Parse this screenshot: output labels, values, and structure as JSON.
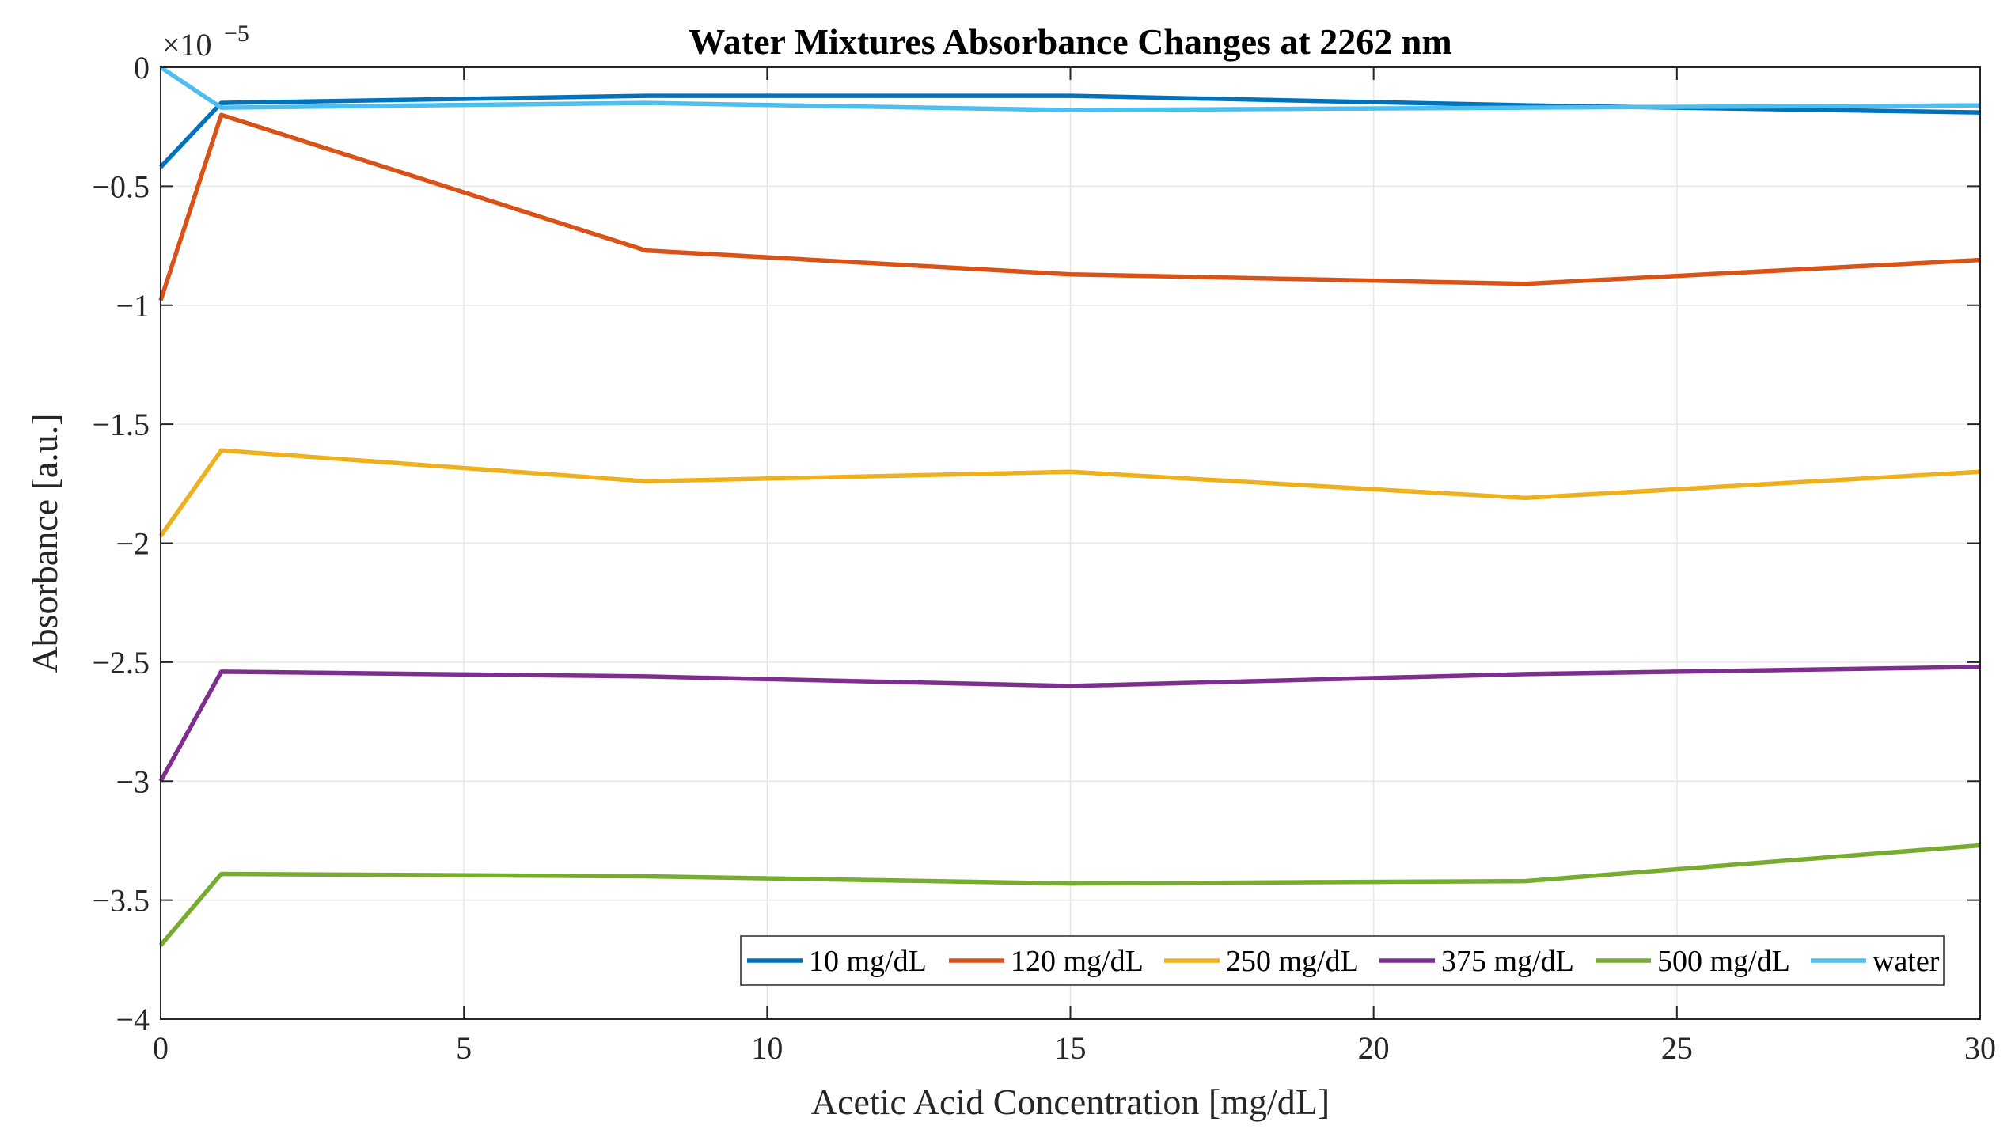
{
  "chart_data": {
    "type": "line",
    "title": "Water Mixtures Absorbance Changes at 2262 nm",
    "xlabel": "Acetic Acid Concentration [mg/dL]",
    "ylabel": "Absorbance [a.u.]",
    "y_multiplier": {
      "base": "×10",
      "exponent": "−5"
    },
    "xlim": [
      0,
      30
    ],
    "ylim": [
      -4,
      0
    ],
    "grid": true,
    "legend_location": "bottom-right",
    "legend_orientation": "horizontal",
    "x_ticks": [
      0,
      5,
      10,
      15,
      20,
      25,
      30
    ],
    "x_tick_labels": [
      "0",
      "5",
      "10",
      "15",
      "20",
      "25",
      "30"
    ],
    "y_ticks": [
      0,
      -0.5,
      -1,
      -1.5,
      -2,
      -2.5,
      -3,
      -3.5,
      -4
    ],
    "y_tick_labels": [
      "0",
      "−0.5",
      "−1",
      "−1.5",
      "−2",
      "−2.5",
      "−3",
      "−3.5",
      "−4"
    ],
    "x": [
      0,
      1,
      8,
      15,
      22.5,
      30
    ],
    "series": [
      {
        "name": "10 mg/dL",
        "color": "#0072BD",
        "values": [
          -0.42,
          -0.15,
          -0.12,
          -0.12,
          -0.16,
          -0.19
        ]
      },
      {
        "name": "120 mg/dL",
        "color": "#D95319",
        "values": [
          -0.98,
          -0.2,
          -0.77,
          -0.87,
          -0.91,
          -0.81
        ]
      },
      {
        "name": "250 mg/dL",
        "color": "#EDB120",
        "values": [
          -1.97,
          -1.61,
          -1.74,
          -1.7,
          -1.81,
          -1.7
        ]
      },
      {
        "name": "375 mg/dL",
        "color": "#7E2F8E",
        "values": [
          -3.0,
          -2.54,
          -2.56,
          -2.6,
          -2.55,
          -2.52
        ]
      },
      {
        "name": "500 mg/dL",
        "color": "#77AC30",
        "values": [
          -3.69,
          -3.39,
          -3.4,
          -3.43,
          -3.42,
          -3.27
        ]
      },
      {
        "name": "water",
        "color": "#4DBEEE",
        "values": [
          0.0,
          -0.17,
          -0.15,
          -0.18,
          -0.17,
          -0.16
        ]
      }
    ]
  }
}
